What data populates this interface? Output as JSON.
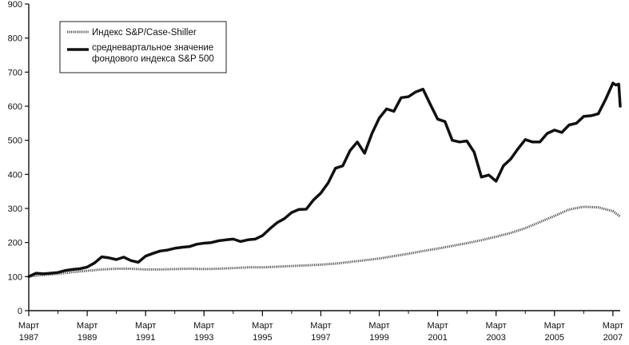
{
  "chart_data": {
    "type": "line",
    "title": "",
    "xlabel": "",
    "ylabel": "",
    "ylim": [
      0,
      900
    ],
    "yticks": [
      0,
      100,
      200,
      300,
      400,
      500,
      600,
      700,
      800,
      900
    ],
    "xlim": [
      1987.0,
      2007.25
    ],
    "xticks": [
      {
        "x": 1987.0,
        "label": [
          "Март",
          "1987"
        ]
      },
      {
        "x": 1989.0,
        "label": [
          "Март",
          "1989"
        ]
      },
      {
        "x": 1991.0,
        "label": [
          "Март",
          "1991"
        ]
      },
      {
        "x": 1993.0,
        "label": [
          "Март",
          "1993"
        ]
      },
      {
        "x": 1995.0,
        "label": [
          "Март",
          "1995"
        ]
      },
      {
        "x": 1997.0,
        "label": [
          "Март",
          "1997"
        ]
      },
      {
        "x": 1999.0,
        "label": [
          "Март",
          "1999"
        ]
      },
      {
        "x": 2001.0,
        "label": [
          "Март",
          "2001"
        ]
      },
      {
        "x": 2003.0,
        "label": [
          "Март",
          "2003"
        ]
      },
      {
        "x": 2005.0,
        "label": [
          "Март",
          "2005"
        ]
      },
      {
        "x": 2007.0,
        "label": [
          "Март",
          "2007"
        ]
      }
    ],
    "grid": false,
    "legend_position": "top-left",
    "series": [
      {
        "name": "Индекс S&P/Case-Shiller",
        "style": "dotted",
        "color": "#555555",
        "points": [
          [
            1987.0,
            100
          ],
          [
            1987.5,
            105
          ],
          [
            1988.0,
            108
          ],
          [
            1988.5,
            113
          ],
          [
            1989.0,
            117
          ],
          [
            1989.5,
            121
          ],
          [
            1990.0,
            123
          ],
          [
            1990.5,
            123
          ],
          [
            1991.0,
            121
          ],
          [
            1991.5,
            121
          ],
          [
            1992.0,
            122
          ],
          [
            1992.5,
            123
          ],
          [
            1993.0,
            122
          ],
          [
            1993.5,
            123
          ],
          [
            1994.0,
            125
          ],
          [
            1994.5,
            127
          ],
          [
            1995.0,
            127
          ],
          [
            1995.5,
            129
          ],
          [
            1996.0,
            131
          ],
          [
            1996.5,
            133
          ],
          [
            1997.0,
            135
          ],
          [
            1997.5,
            138
          ],
          [
            1998.0,
            143
          ],
          [
            1998.5,
            148
          ],
          [
            1999.0,
            153
          ],
          [
            1999.5,
            160
          ],
          [
            2000.0,
            167
          ],
          [
            2000.5,
            175
          ],
          [
            2001.0,
            182
          ],
          [
            2001.5,
            190
          ],
          [
            2002.0,
            198
          ],
          [
            2002.5,
            207
          ],
          [
            2003.0,
            217
          ],
          [
            2003.5,
            228
          ],
          [
            2004.0,
            242
          ],
          [
            2004.5,
            260
          ],
          [
            2005.0,
            278
          ],
          [
            2005.5,
            297
          ],
          [
            2006.0,
            305
          ],
          [
            2006.5,
            303
          ],
          [
            2007.0,
            292
          ],
          [
            2007.25,
            276
          ]
        ]
      },
      {
        "name": "средневартальное значение фондового индекса S&P 500",
        "legend_lines": [
          "средневартальное значение",
          "фондового  индекса S&P 500"
        ],
        "style": "solid",
        "color": "#111111",
        "points": [
          [
            1987.0,
            100
          ],
          [
            1987.25,
            110
          ],
          [
            1987.5,
            108
          ],
          [
            1987.75,
            110
          ],
          [
            1988.0,
            112
          ],
          [
            1988.25,
            118
          ],
          [
            1988.5,
            121
          ],
          [
            1988.75,
            123
          ],
          [
            1989.0,
            128
          ],
          [
            1989.25,
            140
          ],
          [
            1989.5,
            158
          ],
          [
            1989.75,
            155
          ],
          [
            1990.0,
            150
          ],
          [
            1990.25,
            157
          ],
          [
            1990.5,
            147
          ],
          [
            1990.75,
            142
          ],
          [
            1991.0,
            160
          ],
          [
            1991.25,
            168
          ],
          [
            1991.5,
            175
          ],
          [
            1991.75,
            178
          ],
          [
            1992.0,
            183
          ],
          [
            1992.25,
            186
          ],
          [
            1992.5,
            188
          ],
          [
            1992.75,
            195
          ],
          [
            1993.0,
            198
          ],
          [
            1993.25,
            200
          ],
          [
            1993.5,
            205
          ],
          [
            1993.75,
            208
          ],
          [
            1994.0,
            210
          ],
          [
            1994.25,
            203
          ],
          [
            1994.5,
            208
          ],
          [
            1994.75,
            210
          ],
          [
            1995.0,
            220
          ],
          [
            1995.25,
            240
          ],
          [
            1995.5,
            258
          ],
          [
            1995.75,
            270
          ],
          [
            1996.0,
            288
          ],
          [
            1996.25,
            297
          ],
          [
            1996.5,
            298
          ],
          [
            1996.75,
            325
          ],
          [
            1997.0,
            345
          ],
          [
            1997.25,
            375
          ],
          [
            1997.5,
            418
          ],
          [
            1997.75,
            425
          ],
          [
            1998.0,
            470
          ],
          [
            1998.25,
            495
          ],
          [
            1998.5,
            462
          ],
          [
            1998.75,
            520
          ],
          [
            1999.0,
            565
          ],
          [
            1999.25,
            592
          ],
          [
            1999.5,
            585
          ],
          [
            1999.75,
            625
          ],
          [
            2000.0,
            628
          ],
          [
            2000.25,
            642
          ],
          [
            2000.5,
            650
          ],
          [
            2000.75,
            605
          ],
          [
            2001.0,
            562
          ],
          [
            2001.25,
            555
          ],
          [
            2001.5,
            500
          ],
          [
            2001.75,
            495
          ],
          [
            2002.0,
            498
          ],
          [
            2002.25,
            465
          ],
          [
            2002.5,
            392
          ],
          [
            2002.75,
            398
          ],
          [
            2003.0,
            380
          ],
          [
            2003.25,
            425
          ],
          [
            2003.5,
            445
          ],
          [
            2003.75,
            475
          ],
          [
            2004.0,
            502
          ],
          [
            2004.25,
            495
          ],
          [
            2004.5,
            495
          ],
          [
            2004.75,
            520
          ],
          [
            2005.0,
            530
          ],
          [
            2005.25,
            523
          ],
          [
            2005.5,
            545
          ],
          [
            2005.75,
            550
          ],
          [
            2006.0,
            570
          ],
          [
            2006.25,
            572
          ],
          [
            2006.5,
            578
          ],
          [
            2006.75,
            620
          ],
          [
            2007.0,
            668
          ],
          [
            2007.1,
            662
          ],
          [
            2007.2,
            665
          ],
          [
            2007.25,
            600
          ]
        ]
      }
    ]
  }
}
